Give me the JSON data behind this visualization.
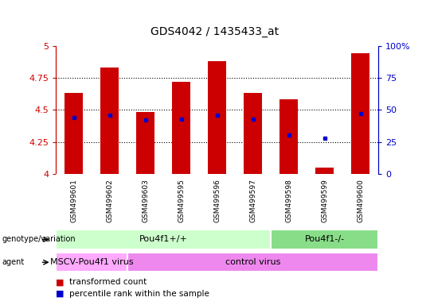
{
  "title": "GDS4042 / 1435433_at",
  "samples": [
    "GSM499601",
    "GSM499602",
    "GSM499603",
    "GSM499595",
    "GSM499596",
    "GSM499597",
    "GSM499598",
    "GSM499599",
    "GSM499600"
  ],
  "transformed_count": [
    4.63,
    4.83,
    4.48,
    4.72,
    4.88,
    4.63,
    4.58,
    4.05,
    4.94
  ],
  "percentile_rank": [
    44,
    46,
    42,
    43,
    46,
    43,
    30,
    28,
    47
  ],
  "bar_bottom": 4.0,
  "ylim_left": [
    4.0,
    5.0
  ],
  "ylim_right": [
    0,
    100
  ],
  "yticks_left": [
    4.0,
    4.25,
    4.5,
    4.75,
    5.0
  ],
  "yticks_right": [
    0,
    25,
    50,
    75,
    100
  ],
  "ytick_labels_left": [
    "4",
    "4.25",
    "4.5",
    "4.75",
    "5"
  ],
  "ytick_labels_right": [
    "0",
    "25",
    "50",
    "75",
    "100%"
  ],
  "bar_color": "#cc0000",
  "dot_color": "#0000cc",
  "bar_width": 0.5,
  "genotype_groups": [
    {
      "label": "Pou4f1+/+",
      "start": 0,
      "end": 6,
      "color": "#ccffcc"
    },
    {
      "label": "Pou4f1-/-",
      "start": 6,
      "end": 9,
      "color": "#88dd88"
    }
  ],
  "agent_groups": [
    {
      "label": "MSCV-Pou4f1 virus",
      "start": 0,
      "end": 2,
      "color": "#ffaaff"
    },
    {
      "label": "control virus",
      "start": 2,
      "end": 9,
      "color": "#ee88ee"
    }
  ],
  "legend_items": [
    {
      "label": "transformed count",
      "color": "#cc0000"
    },
    {
      "label": "percentile rank within the sample",
      "color": "#0000cc"
    }
  ],
  "background_color": "#ffffff",
  "left_axis_color": "#cc0000",
  "right_axis_color": "#0000cc",
  "label_left": "genotype/variation",
  "label_agent": "agent"
}
